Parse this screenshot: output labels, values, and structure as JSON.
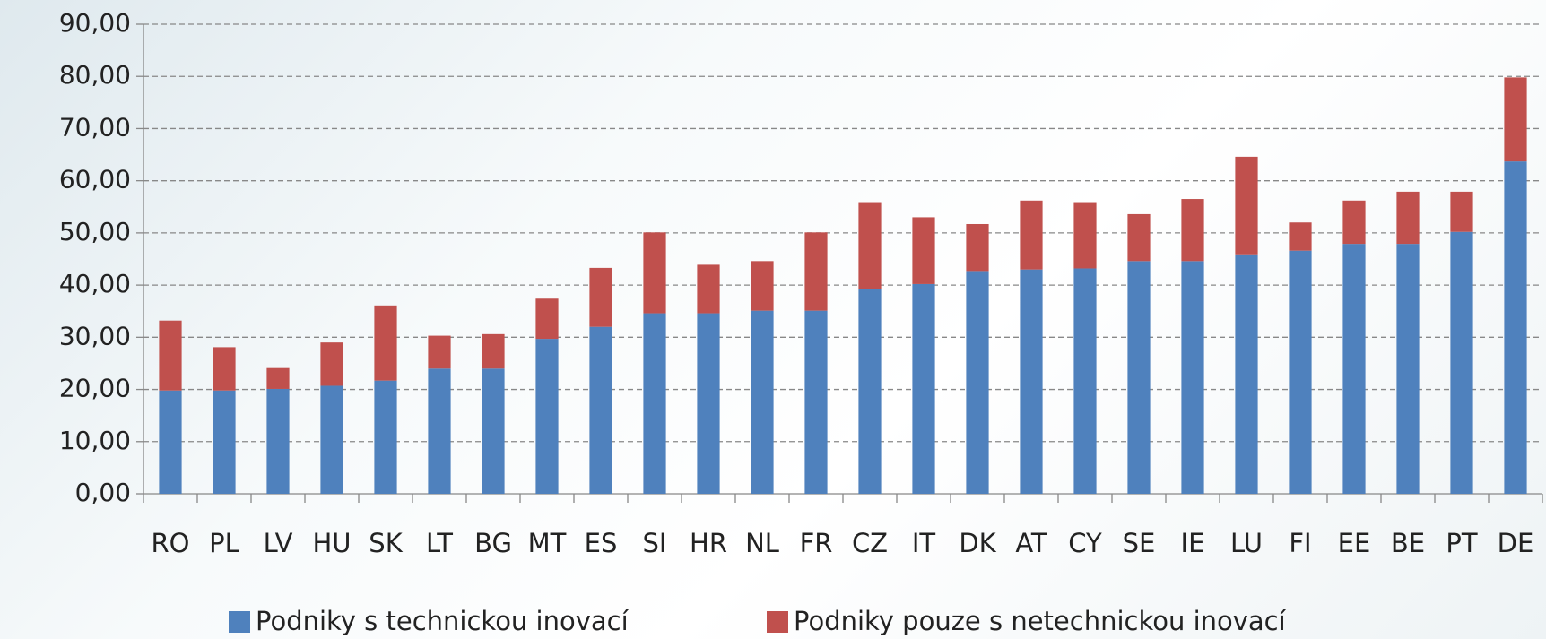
{
  "chart_data": {
    "type": "stacked_bar",
    "categories": [
      "RO",
      "PL",
      "LV",
      "HU",
      "SK",
      "LT",
      "BG",
      "MT",
      "ES",
      "SI",
      "HR",
      "NL",
      "FR",
      "CZ",
      "IT",
      "DK",
      "AT",
      "CY",
      "SE",
      "IE",
      "LU",
      "FI",
      "EE",
      "BE",
      "PT",
      "DE"
    ],
    "series": [
      {
        "name": "Podniky s technickou inovací",
        "color": "#4f81bd",
        "values": [
          19.8,
          19.8,
          20.1,
          20.7,
          21.7,
          24.0,
          24.0,
          29.7,
          32.0,
          34.6,
          34.6,
          35.1,
          35.1,
          39.3,
          40.2,
          42.7,
          43.0,
          43.2,
          44.6,
          44.6,
          45.9,
          46.6,
          47.9,
          47.9,
          50.2,
          63.7
        ]
      },
      {
        "name": "Podniky pouze  s netechnickou inovací",
        "color": "#c0504d",
        "values": [
          13.4,
          8.3,
          4.0,
          8.3,
          14.4,
          6.3,
          6.6,
          7.7,
          11.3,
          15.5,
          9.3,
          9.5,
          15.0,
          16.6,
          12.8,
          9.0,
          13.2,
          12.7,
          9.0,
          11.9,
          18.7,
          5.4,
          8.3,
          10.0,
          7.7,
          16.1
        ]
      }
    ],
    "ylim": [
      0,
      90
    ],
    "yticks": [
      {
        "value": 0,
        "label": "0,00"
      },
      {
        "value": 10,
        "label": "10,00"
      },
      {
        "value": 20,
        "label": "20,00"
      },
      {
        "value": 30,
        "label": "30,00"
      },
      {
        "value": 40,
        "label": "40,00"
      },
      {
        "value": 50,
        "label": "50,00"
      },
      {
        "value": 60,
        "label": "60,00"
      },
      {
        "value": 70,
        "label": "70,00"
      },
      {
        "value": 80,
        "label": "80,00"
      },
      {
        "value": 90,
        "label": "90,00"
      }
    ],
    "grid": true,
    "legend": "bottom"
  }
}
